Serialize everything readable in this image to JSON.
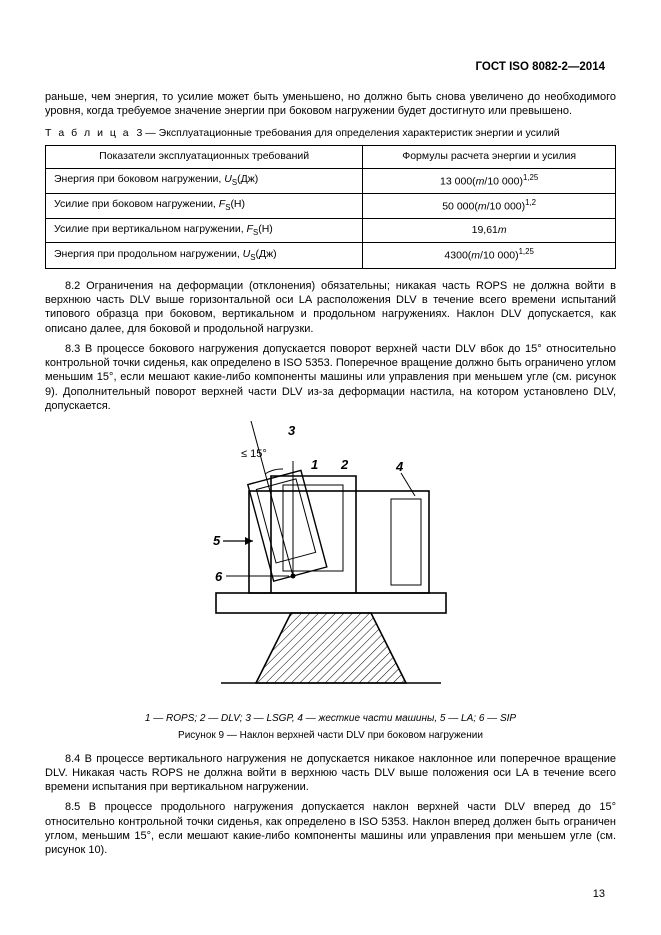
{
  "header": {
    "doc_id": "ГОСТ ISO 8082-2—2014"
  },
  "intro_paras": [
    "раньше, чем энергия, то усилие может быть уменьшено, но должно быть снова увеличено до необходимого уровня, когда требуемое значение энергии при боковом нагружении будет достигнуто или превышено."
  ],
  "table": {
    "caption_prefix": "Т а б л и ц а",
    "caption_num": "3",
    "caption_dash": "—",
    "caption_text": "Эксплуатационные требования для определения характеристик энергии и усилий",
    "head_left": "Показатели эксплуатационных требований",
    "head_right": "Формулы расчета энергии и усилия",
    "rows": [
      {
        "label_pre": "Энергия при боковом нагружении, ",
        "sym": "U",
        "sub": "S",
        "unit": "(Дж)",
        "formula_pre": "13 000(",
        "formula_var": "m",
        "formula_mid": "/10 000)",
        "formula_sup": "1,25"
      },
      {
        "label_pre": "Усилие при боковом нагружении, ",
        "sym": "F",
        "sub": "S",
        "unit": "(Н)",
        "formula_pre": "50 000(",
        "formula_var": "m",
        "formula_mid": "/10 000)",
        "formula_sup": "1,2"
      },
      {
        "label_pre": "Усилие при вертикальном нагружении, ",
        "sym": "F",
        "sub": "S",
        "unit": "(Н)",
        "formula_pre": "19,61",
        "formula_var": "m",
        "formula_mid": "",
        "formula_sup": ""
      },
      {
        "label_pre": "Энергия при продольном нагружении, ",
        "sym": "U",
        "sub": "S",
        "unit": "(Дж)",
        "formula_pre": "4300(",
        "formula_var": "m",
        "formula_mid": "/10 000)",
        "formula_sup": "1,25"
      }
    ]
  },
  "body_paras": [
    "8.2 Ограничения на деформации (отклонения) обязательны; никакая часть ROPS не должна войти в верхнюю часть DLV выше горизонтальной оси LA расположения DLV в течение всего времени испытаний типового образца при боковом, вертикальном и продольном нагружениях. Наклон DLV допускается, как описано далее, для боковой и продольной нагрузки.",
    "8.3 В процессе бокового нагружения допускается поворот верхней части DLV вбок до 15° относительно контрольной точки сиденья, как определено в ISO 5353. Поперечное вращение должно быть ограничено углом меньшим 15°, если мешают какие-либо компоненты машины или управления при меньшем угле (см. рисунок 9). Дополнительный поворот верхней части DLV из-за деформации настила, на котором установлено DLV, допускается."
  ],
  "figure": {
    "angle_label": "≤ 15°",
    "labels": {
      "n1": "1",
      "n2": "2",
      "n3": "3",
      "n4": "4",
      "n5": "5",
      "n6": "6"
    },
    "legend_parts": [
      "1 — ROPS; ",
      "2 — DLV; ",
      "3 — LSGP, ",
      "4 — жесткие части машины, ",
      "5 — LA; ",
      "6 — SIP"
    ],
    "title": "Рисунок 9 — Наклон верхней части DLV при боковом нагружении",
    "colors": {
      "stroke": "#000000",
      "fill_hatch": "#000000",
      "bg": "#ffffff"
    },
    "stroke_width_main": 1.6,
    "stroke_width_thin": 1.0
  },
  "tail_paras": [
    "8.4 В процессе вертикального нагружения не допускается никакое наклонное или поперечное вращение DLV. Никакая часть ROPS не должна войти в верхнюю часть DLV выше положения оси LA в течение всего времени испытания при вертикальном нагружении.",
    "8.5 В процессе продольного нагружения допускается наклон верхней части DLV вперед до 15° относительно контрольной точки сиденья, как определено в ISO 5353. Наклон вперед должен быть ограничен углом, меньшим 15°, если мешают какие-либо компоненты машины или управления при меньшем угле (см. рисунок 10)."
  ],
  "page_number": "13"
}
